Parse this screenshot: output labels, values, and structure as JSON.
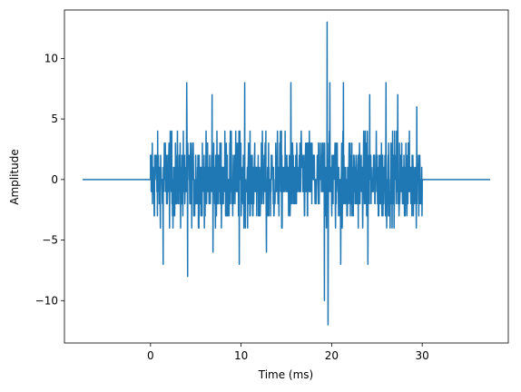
{
  "chart_data": {
    "type": "line",
    "title": "",
    "xlabel": "Time (ms)",
    "ylabel": "Amplitude",
    "xlim": [
      -9.5,
      39.5
    ],
    "ylim": [
      -13.5,
      14
    ],
    "xticks": [
      0,
      10,
      20,
      30
    ],
    "xtick_labels": [
      "0",
      "10",
      "20",
      "30"
    ],
    "yticks": [
      -10,
      -5,
      0,
      5,
      10
    ],
    "ytick_labels": [
      "−10",
      "−5",
      "0",
      "5",
      "10"
    ],
    "grid": false,
    "legend": "none",
    "series": [
      {
        "color": "#1f77b4",
        "description": "flat at 0 from -7.5 to 0 ms, dense integer-valued noise burst from 0 to 30 ms (typically within about -4..4, extremes 13 and -12 near 19.6 ms), flat at 0 from 30 to 37.5 ms",
        "lead_in": {
          "x": [
            -7.5,
            0
          ],
          "y": [
            0,
            0
          ]
        },
        "burst": {
          "x_start": 0,
          "x_end": 30,
          "typical_range": [
            -4,
            4
          ]
        },
        "outliers": [
          {
            "x": 4.0,
            "y": 8
          },
          {
            "x": 4.1,
            "y": -8
          },
          {
            "x": 10.4,
            "y": 8
          },
          {
            "x": 15.5,
            "y": 8
          },
          {
            "x": 1.4,
            "y": -7
          },
          {
            "x": 6.8,
            "y": 7
          },
          {
            "x": 6.9,
            "y": -6
          },
          {
            "x": 9.8,
            "y": -7
          },
          {
            "x": 12.8,
            "y": -6
          },
          {
            "x": 19.5,
            "y": 13
          },
          {
            "x": 19.6,
            "y": -12
          },
          {
            "x": 19.2,
            "y": -10
          },
          {
            "x": 19.8,
            "y": 8
          },
          {
            "x": 21.3,
            "y": 8
          },
          {
            "x": 21.0,
            "y": -7
          },
          {
            "x": 24.2,
            "y": 7
          },
          {
            "x": 24.0,
            "y": -6
          },
          {
            "x": 26.0,
            "y": 8
          },
          {
            "x": 24.0,
            "y": -7
          },
          {
            "x": 27.3,
            "y": 7
          },
          {
            "x": 29.4,
            "y": 6
          },
          {
            "x": 0.2,
            "y": 3
          }
        ],
        "lead_out": {
          "x": [
            30,
            37.5
          ],
          "y": [
            0,
            0
          ]
        }
      }
    ]
  }
}
